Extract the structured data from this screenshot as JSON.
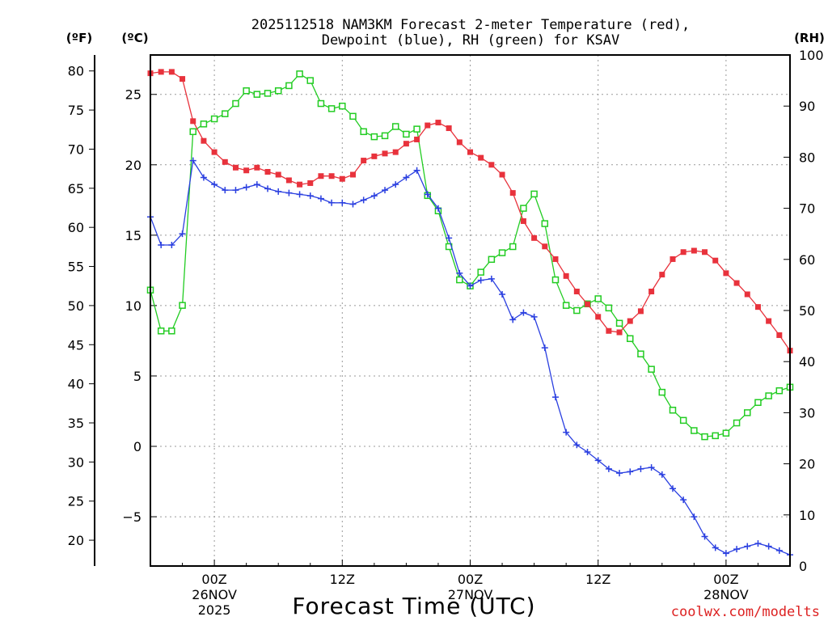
{
  "chart_data": {
    "type": "line",
    "title_line1": "2025112518 NAM3KM Forecast 2-meter Temperature (red),",
    "title_line2": "Dewpoint (blue), RH (green) for KSAV",
    "xlabel": "Forecast Time (UTC)",
    "credit": "coolwx.com/modelts",
    "credit_color": "#dd2222",
    "units": {
      "fahrenheit": "(ºF)",
      "celsius": "(ºC)",
      "rh": "(RH)"
    },
    "x": {
      "start_hour": 0,
      "end_hour": 60,
      "step_hour": 1
    },
    "x_ticks": [
      {
        "hour": 6,
        "line1": "00Z",
        "line2": "26NOV",
        "line3": "2025"
      },
      {
        "hour": 18,
        "line1": "12Z",
        "line2": "",
        "line3": ""
      },
      {
        "hour": 30,
        "line1": "00Z",
        "line2": "27NOV",
        "line3": ""
      },
      {
        "hour": 42,
        "line1": "12Z",
        "line2": "",
        "line3": ""
      },
      {
        "hour": 54,
        "line1": "00Z",
        "line2": "28NOV",
        "line3": ""
      }
    ],
    "ylim_celsius": [
      -8.5,
      27.8
    ],
    "yticks_celsius": [
      -5,
      0,
      5,
      10,
      15,
      20,
      25
    ],
    "yticks_fahrenheit": [
      20,
      25,
      30,
      35,
      40,
      45,
      50,
      55,
      60,
      65,
      70,
      75,
      80
    ],
    "ylim_rh": [
      0,
      100
    ],
    "yticks_rh": [
      0,
      10,
      20,
      30,
      40,
      50,
      60,
      70,
      80,
      90,
      100
    ],
    "colors": {
      "temperature": "#e8323c",
      "dewpoint": "#2a3fe0",
      "rh": "#22cc22",
      "grid": "#999999"
    },
    "series": [
      {
        "name": "Temperature",
        "unit": "C",
        "values": [
          26.5,
          26.6,
          26.6,
          26.1,
          23.1,
          21.7,
          20.9,
          20.2,
          19.8,
          19.6,
          19.8,
          19.5,
          19.3,
          18.9,
          18.6,
          18.7,
          19.2,
          19.2,
          19.0,
          19.3,
          20.3,
          20.6,
          20.8,
          20.9,
          21.5,
          21.8,
          22.8,
          23.0,
          22.6,
          21.6,
          20.9,
          20.5,
          20.0,
          19.3,
          18.0,
          16.0,
          14.8,
          14.2,
          13.3,
          12.1,
          11.0,
          10.1,
          9.2,
          8.2,
          8.1,
          8.9,
          9.6,
          11.0,
          12.2,
          13.3,
          13.8,
          13.9,
          13.8,
          13.2,
          12.3,
          11.6,
          10.8,
          9.9,
          8.9,
          7.9,
          6.8
        ]
      },
      {
        "name": "Dewpoint",
        "unit": "C",
        "values": [
          16.3,
          14.3,
          14.3,
          15.1,
          20.3,
          19.1,
          18.6,
          18.2,
          18.2,
          18.4,
          18.6,
          18.3,
          18.1,
          18.0,
          17.9,
          17.8,
          17.6,
          17.3,
          17.3,
          17.2,
          17.5,
          17.8,
          18.2,
          18.6,
          19.1,
          19.6,
          17.9,
          16.9,
          14.8,
          12.3,
          11.4,
          11.8,
          11.9,
          10.8,
          9.0,
          9.5,
          9.2,
          7.0,
          3.5,
          1.0,
          0.1,
          -0.4,
          -1.0,
          -1.6,
          -1.9,
          -1.8,
          -1.6,
          -1.5,
          -2.0,
          -3.0,
          -3.8,
          -5.0,
          -6.4,
          -7.2,
          -7.6,
          -7.3,
          -7.1,
          -6.9,
          -7.1,
          -7.4,
          -7.7
        ]
      },
      {
        "name": "RH",
        "unit": "%",
        "values": [
          54.0,
          46.0,
          46.0,
          51.0,
          85.0,
          86.5,
          87.5,
          88.5,
          90.5,
          93.0,
          92.3,
          92.5,
          93.0,
          94.0,
          96.3,
          95.0,
          90.5,
          89.5,
          90.0,
          88.0,
          85.0,
          84.0,
          84.2,
          86.0,
          84.5,
          85.5,
          72.5,
          69.5,
          62.5,
          56.0,
          54.8,
          57.5,
          60.0,
          61.3,
          62.5,
          70.0,
          72.8,
          67.0,
          56.0,
          51.0,
          50.0,
          51.3,
          52.3,
          50.5,
          47.5,
          44.5,
          41.5,
          38.5,
          34.0,
          30.5,
          28.5,
          26.5,
          25.3,
          25.5,
          26.0,
          28.0,
          30.0,
          32.0,
          33.3,
          34.3,
          35.0
        ]
      }
    ]
  }
}
